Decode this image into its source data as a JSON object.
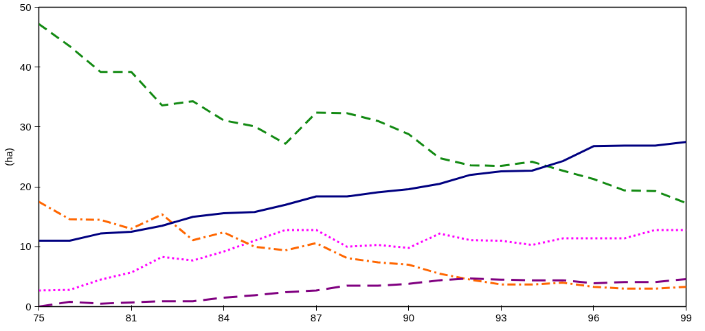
{
  "chart_data": {
    "type": "line",
    "ylabel": "(ha)",
    "categories": [
      "75",
      null,
      null,
      "81",
      null,
      null,
      "84",
      null,
      null,
      "87",
      null,
      null,
      "90",
      null,
      null,
      "93",
      null,
      null,
      "96",
      null,
      null,
      "99"
    ],
    "ylim": [
      0,
      50
    ],
    "yticks": [
      0,
      10,
      20,
      30,
      40,
      50
    ],
    "grid": false,
    "marker": "none",
    "series": [
      {
        "color": "#138a13",
        "line_style": "dashed",
        "values": [
          47.2,
          43.5,
          39.2,
          39.2,
          33.6,
          34.3,
          31.1,
          30.1,
          27.2,
          32.4,
          32.3,
          31.0,
          28.8,
          24.8,
          23.6,
          23.5,
          24.2,
          22.7,
          21.3,
          19.4,
          19.3,
          17.3
        ]
      },
      {
        "color": "#ff00ff",
        "line_style": "dotted",
        "values": [
          2.7,
          2.8,
          4.5,
          5.7,
          8.3,
          7.7,
          9.2,
          11.0,
          12.8,
          12.8,
          10.0,
          10.3,
          9.8,
          12.2,
          11.1,
          11.0,
          10.3,
          11.4,
          11.4,
          11.4,
          12.8,
          12.8
        ]
      },
      {
        "color": "#ff6600",
        "line_style": "dashdot",
        "values": [
          17.5,
          14.6,
          14.5,
          13.0,
          15.4,
          11.1,
          12.4,
          10.0,
          9.4,
          10.6,
          8.1,
          7.4,
          7.0,
          5.5,
          4.5,
          3.7,
          3.7,
          4.0,
          3.3,
          3.0,
          3.0,
          3.3
        ]
      },
      {
        "color": "#000080",
        "line_style": "solid",
        "values": [
          11.0,
          11.0,
          12.2,
          12.5,
          13.5,
          15.0,
          15.6,
          15.8,
          17.0,
          18.4,
          18.4,
          19.1,
          19.6,
          20.5,
          22.0,
          22.6,
          22.7,
          24.3,
          26.8,
          26.9,
          26.9,
          27.5
        ]
      },
      {
        "color": "#800080",
        "line_style": "longdash",
        "values": [
          0,
          0.8,
          0.5,
          0.7,
          0.9,
          0.9,
          1.5,
          1.9,
          2.4,
          2.7,
          3.5,
          3.5,
          3.8,
          4.4,
          4.7,
          4.5,
          4.4,
          4.4,
          3.9,
          4.1,
          4.1,
          4.6
        ]
      }
    ]
  }
}
